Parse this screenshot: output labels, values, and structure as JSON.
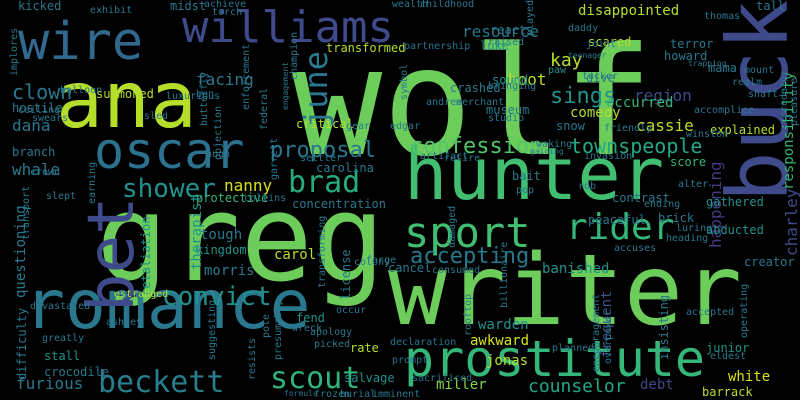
{
  "cloud": {
    "background": "#000000",
    "words": [
      {
        "text": "wolf",
        "color": "#6ccd5a"
      },
      {
        "text": "greg",
        "color": "#6ccd5a"
      },
      {
        "text": "writer",
        "color": "#6ccd5a"
      },
      {
        "text": "ana",
        "color": "#b5de2b"
      },
      {
        "text": "hunter",
        "color": "#42be71"
      },
      {
        "text": "romance",
        "color": "#2a788e"
      },
      {
        "text": "buck",
        "color": "#3e4a89"
      },
      {
        "text": "wire",
        "color": "#31688e"
      },
      {
        "text": "williams",
        "color": "#3e4a89"
      },
      {
        "text": "oscar",
        "color": "#2c728e"
      },
      {
        "text": "bet",
        "color": "#3e4a89"
      },
      {
        "text": "prostitute",
        "color": "#35b779"
      },
      {
        "text": "sport",
        "color": "#42be71"
      },
      {
        "text": "scout",
        "color": "#2fb47c"
      },
      {
        "text": "beckett",
        "color": "#277f8e"
      },
      {
        "text": "brad",
        "color": "#25ab82"
      },
      {
        "text": "shower",
        "color": "#21918c"
      },
      {
        "text": "rider",
        "color": "#35b779"
      },
      {
        "text": "convict",
        "color": "#21918c"
      },
      {
        "text": "june",
        "color": "#2a788e"
      },
      {
        "text": "sings",
        "color": "#21918c"
      },
      {
        "text": "counselor",
        "color": "#22a884"
      },
      {
        "text": "accepting",
        "color": "#2a788e"
      },
      {
        "text": "confession",
        "color": "#52c569"
      },
      {
        "text": "proposal",
        "color": "#2a788e"
      },
      {
        "text": "townspeople",
        "color": "#22a884"
      },
      {
        "text": "clown",
        "color": "#2a788e"
      },
      {
        "text": "dana",
        "color": "#2a788e"
      },
      {
        "text": "whale",
        "color": "#2a788e"
      },
      {
        "text": "nanny",
        "color": "#d8e219"
      },
      {
        "text": "kay",
        "color": "#b5de2b"
      },
      {
        "text": "region",
        "color": "#3e4a89"
      },
      {
        "text": "cassie",
        "color": "#bddf26"
      },
      {
        "text": "comedy",
        "color": "#b5de2b"
      },
      {
        "text": "charley",
        "color": "#3e4a89"
      },
      {
        "text": "responsibility",
        "color": "#35b779"
      },
      {
        "text": "happening",
        "color": "#443983"
      },
      {
        "text": "frequent",
        "color": "#3b528b"
      },
      {
        "text": "jonas",
        "color": "#b5de2b"
      },
      {
        "text": "warden",
        "color": "#21918c"
      },
      {
        "text": "awkward",
        "color": "#d8e219"
      },
      {
        "text": "miller",
        "color": "#86d549"
      },
      {
        "text": "furious",
        "color": "#2a788e"
      },
      {
        "text": "debt",
        "color": "#3e4a89"
      },
      {
        "text": "white",
        "color": "#d8e219"
      },
      {
        "text": "barrack",
        "color": "#b5de2b"
      },
      {
        "text": "resource",
        "color": "#2a788e"
      },
      {
        "text": "disappointed",
        "color": "#b5de2b"
      },
      {
        "text": "facing",
        "color": "#2a788e"
      },
      {
        "text": "boot",
        "color": "#b5de2b"
      },
      {
        "text": "occurred",
        "color": "#35b779"
      },
      {
        "text": "luke",
        "color": "#21918c"
      },
      {
        "text": "summoned",
        "color": "#b5de2b"
      },
      {
        "text": "branch",
        "color": "#2a788e"
      },
      {
        "text": "carol",
        "color": "#b5de2b"
      },
      {
        "text": "morris",
        "color": "#2a788e"
      },
      {
        "text": "tough",
        "color": "#2a788e"
      },
      {
        "text": "protective",
        "color": "#35b779"
      },
      {
        "text": "kingdom",
        "color": "#21918c"
      },
      {
        "text": "banished",
        "color": "#21918c"
      },
      {
        "text": "cancel",
        "color": "#2a788e"
      },
      {
        "text": "sound",
        "color": "#21918c"
      },
      {
        "text": "snow",
        "color": "#2a788e"
      },
      {
        "text": "scared",
        "color": "#b5de2b"
      },
      {
        "text": "paw",
        "color": "#21918c"
      },
      {
        "text": "howard",
        "color": "#2a788e"
      },
      {
        "text": "terror",
        "color": "#2a788e"
      },
      {
        "text": "explained",
        "color": "#b5de2b"
      },
      {
        "text": "score",
        "color": "#35b779"
      },
      {
        "text": "gathered",
        "color": "#21918c"
      },
      {
        "text": "alter",
        "color": "#2a788e"
      },
      {
        "text": "brick",
        "color": "#2a788e"
      },
      {
        "text": "abducted",
        "color": "#21918c"
      },
      {
        "text": "creator",
        "color": "#2a788e"
      },
      {
        "text": "junior",
        "color": "#21918c"
      },
      {
        "text": "eldest",
        "color": "#2a788e"
      },
      {
        "text": "insisting",
        "color": "#2a788e"
      },
      {
        "text": "concentration",
        "color": "#2a788e"
      },
      {
        "text": "carolina",
        "color": "#2a788e"
      },
      {
        "text": "retaliation",
        "color": "#21918c"
      },
      {
        "text": "questioning",
        "color": "#2a788e"
      },
      {
        "text": "therapist",
        "color": "#21918c"
      },
      {
        "text": "transformed",
        "color": "#b5de2b"
      },
      {
        "text": "critical",
        "color": "#b5de2b"
      },
      {
        "text": "hostile",
        "color": "#2a788e"
      },
      {
        "text": "difficulty",
        "color": "#2a788e"
      },
      {
        "text": "crocodile",
        "color": "#2a788e"
      },
      {
        "text": "stall",
        "color": "#21918c"
      },
      {
        "text": "devastated",
        "color": "#2a788e"
      },
      {
        "text": "ashley",
        "color": "#2a788e"
      },
      {
        "text": "estranged",
        "color": "#b5de2b"
      },
      {
        "text": "fend",
        "color": "#21918c"
      },
      {
        "text": "license",
        "color": "#2a788e"
      },
      {
        "text": "rate",
        "color": "#b5de2b"
      },
      {
        "text": "salvage",
        "color": "#21918c"
      },
      {
        "text": "apology",
        "color": "#2a788e"
      },
      {
        "text": "picked",
        "color": "#2a788e"
      },
      {
        "text": "presumably",
        "color": "#2a788e"
      },
      {
        "text": "suggesting",
        "color": "#2a788e"
      },
      {
        "text": "sacrificed",
        "color": "#2a788e"
      },
      {
        "text": "burial",
        "color": "#2a788e"
      },
      {
        "text": "imminent",
        "color": "#2a788e"
      },
      {
        "text": "frozen",
        "color": "#2a788e"
      },
      {
        "text": "formula",
        "color": "#2a788e"
      },
      {
        "text": "prompt",
        "color": "#2a788e"
      },
      {
        "text": "accepted",
        "color": "#2a788e"
      },
      {
        "text": "kicked",
        "color": "#2a788e"
      },
      {
        "text": "exhibit",
        "color": "#2a788e"
      },
      {
        "text": "midst",
        "color": "#2a788e"
      },
      {
        "text": "achieve",
        "color": "#2a788e"
      },
      {
        "text": "torch",
        "color": "#2a788e"
      },
      {
        "text": "wealth",
        "color": "#2a788e"
      },
      {
        "text": "childhood",
        "color": "#2a788e"
      },
      {
        "text": "played",
        "color": "#2a788e"
      },
      {
        "text": "thomas",
        "color": "#2a788e"
      },
      {
        "text": "tall",
        "color": "#2a788e"
      },
      {
        "text": "joint",
        "color": "#2a788e"
      },
      {
        "text": "predator",
        "color": "#2a788e"
      },
      {
        "text": "pleasure",
        "color": "#2a788e"
      },
      {
        "text": "mount",
        "color": "#2a788e"
      },
      {
        "text": "realm",
        "color": "#2a788e"
      },
      {
        "text": "shaft",
        "color": "#2a788e"
      },
      {
        "text": "mama",
        "color": "#2a788e"
      },
      {
        "text": "trapping",
        "color": "#2a788e"
      },
      {
        "text": "teenager",
        "color": "#2a788e"
      },
      {
        "text": "tucker",
        "color": "#2a788e"
      },
      {
        "text": "dive",
        "color": "#2a788e"
      },
      {
        "text": "reacts",
        "color": "#2a788e"
      },
      {
        "text": "raised",
        "color": "#2a788e"
      },
      {
        "text": "partnership",
        "color": "#2a788e"
      },
      {
        "text": "crashed",
        "color": "#2a788e"
      },
      {
        "text": "bringing",
        "color": "#2a788e"
      },
      {
        "text": "merchant",
        "color": "#2a788e"
      },
      {
        "text": "museum",
        "color": "#2a788e"
      },
      {
        "text": "studio",
        "color": "#2a788e"
      },
      {
        "text": "andrea",
        "color": "#2a788e"
      },
      {
        "text": "symbol",
        "color": "#2a788e"
      },
      {
        "text": "edgar",
        "color": "#2a788e"
      },
      {
        "text": "gear",
        "color": "#2a788e"
      },
      {
        "text": "friendly",
        "color": "#2a788e"
      },
      {
        "text": "winston",
        "color": "#2a788e"
      },
      {
        "text": "accomplice",
        "color": "#2a788e"
      },
      {
        "text": "artifact",
        "color": "#2a788e"
      },
      {
        "text": "retire",
        "color": "#2a788e"
      },
      {
        "text": "waking",
        "color": "#2a788e"
      },
      {
        "text": "gaining",
        "color": "#2a788e"
      },
      {
        "text": "invasion",
        "color": "#2a788e"
      },
      {
        "text": "settler",
        "color": "#2a788e"
      },
      {
        "text": "federal",
        "color": "#2a788e"
      },
      {
        "text": "enforcement",
        "color": "#2a788e"
      },
      {
        "text": "champion",
        "color": "#2a788e"
      },
      {
        "text": "engagement",
        "color": "#2a788e"
      },
      {
        "text": "balloon",
        "color": "#2a788e"
      },
      {
        "text": "luxurious",
        "color": "#2a788e"
      },
      {
        "text": "ceiling",
        "color": "#2a788e"
      },
      {
        "text": "swears",
        "color": "#2a788e"
      },
      {
        "text": "implores",
        "color": "#2a788e"
      },
      {
        "text": "crown",
        "color": "#2a788e"
      },
      {
        "text": "transport",
        "color": "#2a788e"
      },
      {
        "text": "slept",
        "color": "#2a788e"
      },
      {
        "text": "earning",
        "color": "#2a788e"
      },
      {
        "text": "objection",
        "color": "#2a788e"
      },
      {
        "text": "sled",
        "color": "#2a788e"
      },
      {
        "text": "ben",
        "color": "#2a788e"
      },
      {
        "text": "butterfly",
        "color": "#2a788e"
      },
      {
        "text": "hugh",
        "color": "#2a788e"
      },
      {
        "text": "garrett",
        "color": "#2a788e"
      },
      {
        "text": "collins",
        "color": "#2a788e"
      },
      {
        "text": "greatly",
        "color": "#2a788e"
      },
      {
        "text": "pole",
        "color": "#2a788e"
      },
      {
        "text": "resists",
        "color": "#2a788e"
      },
      {
        "text": "wreck",
        "color": "#2a788e"
      },
      {
        "text": "occur",
        "color": "#2a788e"
      },
      {
        "text": "forge",
        "color": "#2a788e"
      },
      {
        "text": "colony",
        "color": "#2a788e"
      },
      {
        "text": "transforming",
        "color": "#2a788e"
      },
      {
        "text": "consumed",
        "color": "#2a788e"
      },
      {
        "text": "billionaire",
        "color": "#2a788e"
      },
      {
        "text": "damaged",
        "color": "#2a788e"
      },
      {
        "text": "bait",
        "color": "#2a788e"
      },
      {
        "text": "pop",
        "color": "#2a788e"
      },
      {
        "text": "rob",
        "color": "#2a788e"
      },
      {
        "text": "peaceful",
        "color": "#2a788e"
      },
      {
        "text": "accuses",
        "color": "#2a788e"
      },
      {
        "text": "luring",
        "color": "#2a788e"
      },
      {
        "text": "heading",
        "color": "#2a788e"
      },
      {
        "text": "operating",
        "color": "#2a788e"
      },
      {
        "text": "contrast",
        "color": "#2a788e"
      },
      {
        "text": "daddy",
        "color": "#2a788e"
      },
      {
        "text": "ending",
        "color": "#2a788e"
      },
      {
        "text": "rooftop",
        "color": "#2a788e"
      },
      {
        "text": "declaration",
        "color": "#2a788e"
      },
      {
        "text": "encouragement",
        "color": "#2a788e"
      },
      {
        "text": "overpower",
        "color": "#2a788e"
      },
      {
        "text": "planned",
        "color": "#2a788e"
      },
      {
        "text": "nurse",
        "color": "#2a788e"
      }
    ]
  }
}
